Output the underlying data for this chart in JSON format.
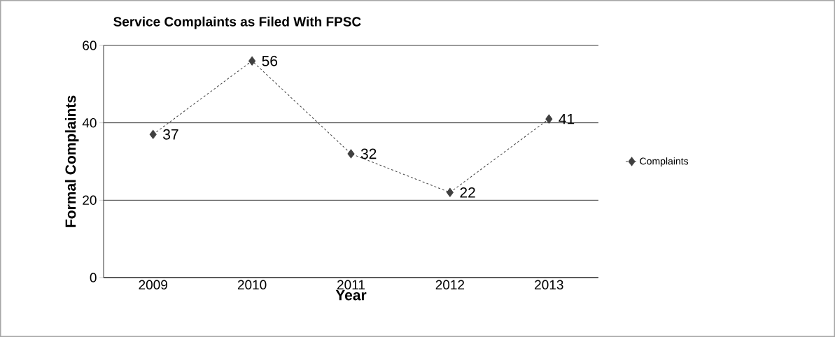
{
  "chart_data": {
    "type": "line",
    "title": "Service Complaints as Filed With FPSC",
    "xlabel": "Year",
    "ylabel": "Formal Complaints",
    "categories": [
      "2009",
      "2010",
      "2011",
      "2012",
      "2013"
    ],
    "series": [
      {
        "name": "Complaints",
        "color": "#404040",
        "values": [
          37,
          56,
          32,
          22,
          41
        ]
      }
    ],
    "ylim": [
      0,
      60
    ],
    "yticks": [
      0,
      20,
      40,
      60
    ],
    "grid": "y",
    "legend": "right",
    "marker": "diamond",
    "line_style": "dashed",
    "data_labels": true
  }
}
